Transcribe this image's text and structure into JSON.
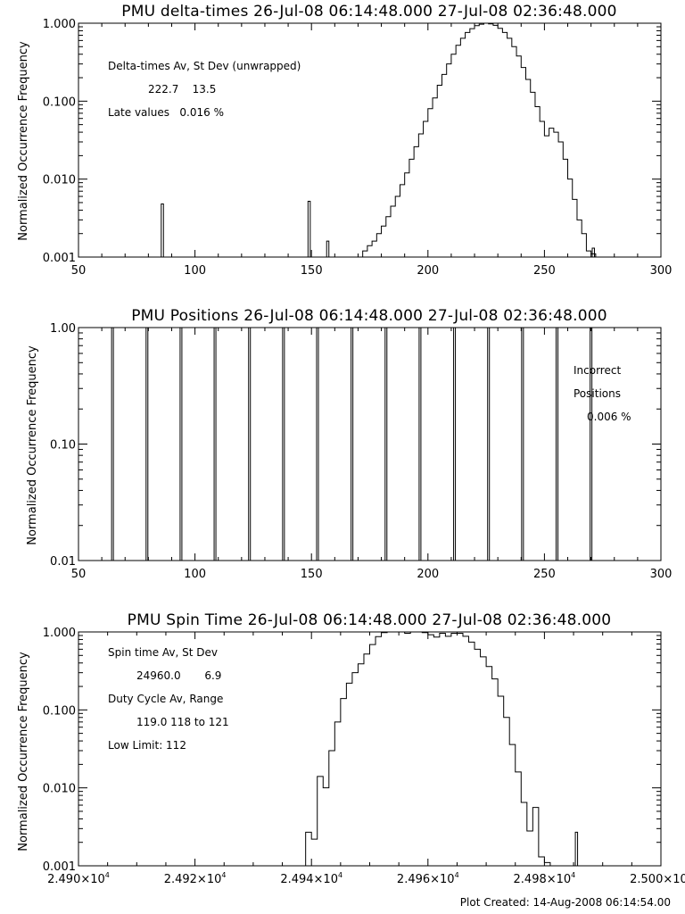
{
  "footer": "Plot Created: 14-Aug-2008 06:14:54.00",
  "chart_data": [
    {
      "type": "line",
      "title": "PMU delta-times 26-Jul-08 06:14:48.000 27-Jul-08 02:36:48.000",
      "ylabel": "Normalized Occurrence Frequency",
      "xlabel": "",
      "xlim": [
        50,
        300
      ],
      "ylim": [
        0.001,
        1.0
      ],
      "yscale": "log",
      "xticks": [
        "50",
        "100",
        "150",
        "200",
        "250",
        "300"
      ],
      "yticks": [
        "0.001",
        "0.010",
        "0.100",
        "1.000"
      ],
      "annotations": [
        "Delta-times Av, St Dev (unwrapped)",
        "222.7    13.5",
        "Late values   0.016 %"
      ],
      "spikes": [
        {
          "x": 86,
          "y": 0.0048
        },
        {
          "x": 149,
          "y": 0.0052
        },
        {
          "x": 157,
          "y": 0.0016
        },
        {
          "x": 271,
          "y": 0.0013
        }
      ],
      "x": [
        172,
        174,
        176,
        178,
        180,
        182,
        184,
        186,
        188,
        190,
        192,
        194,
        196,
        198,
        200,
        202,
        204,
        206,
        208,
        210,
        212,
        214,
        216,
        218,
        220,
        222,
        224,
        226,
        228,
        230,
        232,
        234,
        236,
        238,
        240,
        242,
        244,
        246,
        248,
        250,
        252,
        254,
        256,
        258,
        260,
        262,
        264,
        266,
        268,
        270
      ],
      "y": [
        0.0012,
        0.0014,
        0.0016,
        0.002,
        0.0025,
        0.0033,
        0.0045,
        0.006,
        0.0085,
        0.012,
        0.018,
        0.026,
        0.038,
        0.055,
        0.08,
        0.11,
        0.16,
        0.22,
        0.3,
        0.4,
        0.52,
        0.64,
        0.76,
        0.85,
        0.93,
        0.97,
        1.0,
        0.98,
        0.94,
        0.86,
        0.76,
        0.64,
        0.5,
        0.38,
        0.27,
        0.19,
        0.13,
        0.085,
        0.055,
        0.036,
        0.045,
        0.04,
        0.03,
        0.018,
        0.01,
        0.0055,
        0.003,
        0.002,
        0.0012,
        0.0011
      ]
    },
    {
      "type": "line",
      "title": "PMU Positions 26-Jul-08 06:14:48.000 27-Jul-08 02:36:48.000",
      "ylabel": "Normalized Occurrence Frequency",
      "xlabel": "",
      "xlim": [
        50,
        300
      ],
      "ylim": [
        0.01,
        1.0
      ],
      "yscale": "log",
      "xticks": [
        "50",
        "100",
        "150",
        "200",
        "250",
        "300"
      ],
      "yticks": [
        "0.01",
        "0.10",
        "1.00"
      ],
      "annotations": [
        "Incorrect",
        "Positions",
        "0.006 %"
      ],
      "spikes": [
        {
          "x": 64.6,
          "y": 1.0
        },
        {
          "x": 79.4,
          "y": 1.0
        },
        {
          "x": 94.0,
          "y": 1.0
        },
        {
          "x": 108.6,
          "y": 1.0
        },
        {
          "x": 123.4,
          "y": 1.0
        },
        {
          "x": 138.0,
          "y": 1.0
        },
        {
          "x": 152.6,
          "y": 1.0
        },
        {
          "x": 167.4,
          "y": 1.0
        },
        {
          "x": 182.0,
          "y": 1.0
        },
        {
          "x": 196.6,
          "y": 1.0
        },
        {
          "x": 211.4,
          "y": 1.0
        },
        {
          "x": 226.0,
          "y": 1.0
        },
        {
          "x": 240.6,
          "y": 1.0
        },
        {
          "x": 255.4,
          "y": 1.0
        },
        {
          "x": 270.0,
          "y": 1.0
        }
      ]
    },
    {
      "type": "line",
      "title": "PMU Spin Time 26-Jul-08 06:14:48.000 27-Jul-08 02:36:48.000",
      "ylabel": "Normalized Occurrence Frequency",
      "xlabel": "",
      "xlim": [
        24900,
        25000
      ],
      "ylim": [
        0.001,
        1.0
      ],
      "yscale": "log",
      "xticks": [
        "2.490×10^4",
        "2.492×10^4",
        "2.494×10^4",
        "2.496×10^4",
        "2.498×10^4",
        "2.500×10^4"
      ],
      "yticks": [
        "0.001",
        "0.010",
        "0.100",
        "1.000"
      ],
      "annotations": [
        "Spin time Av, St Dev",
        "24960.0       6.9",
        "Duty Cycle Av, Range",
        "119.0 118 to 121",
        "Low Limit: 112"
      ],
      "spikes": [
        {
          "x": 24985.5,
          "y": 0.0027
        }
      ],
      "x": [
        24939,
        24940,
        24941,
        24942,
        24943,
        24944,
        24945,
        24946,
        24947,
        24948,
        24949,
        24950,
        24951,
        24952,
        24953,
        24954,
        24955,
        24956,
        24957,
        24958,
        24959,
        24960,
        24961,
        24962,
        24963,
        24964,
        24965,
        24966,
        24967,
        24968,
        24969,
        24970,
        24971,
        24972,
        24973,
        24974,
        24975,
        24976,
        24977,
        24978,
        24979,
        24980
      ],
      "y": [
        0.0027,
        0.0022,
        0.014,
        0.01,
        0.03,
        0.07,
        0.14,
        0.22,
        0.3,
        0.39,
        0.52,
        0.69,
        0.87,
        0.98,
        1.0,
        1.0,
        1.0,
        0.96,
        1.0,
        1.0,
        0.98,
        0.92,
        0.86,
        0.96,
        0.88,
        0.96,
        0.96,
        0.88,
        0.74,
        0.6,
        0.48,
        0.36,
        0.25,
        0.15,
        0.08,
        0.036,
        0.016,
        0.0065,
        0.0028,
        0.0056,
        0.0013,
        0.0011
      ]
    }
  ]
}
